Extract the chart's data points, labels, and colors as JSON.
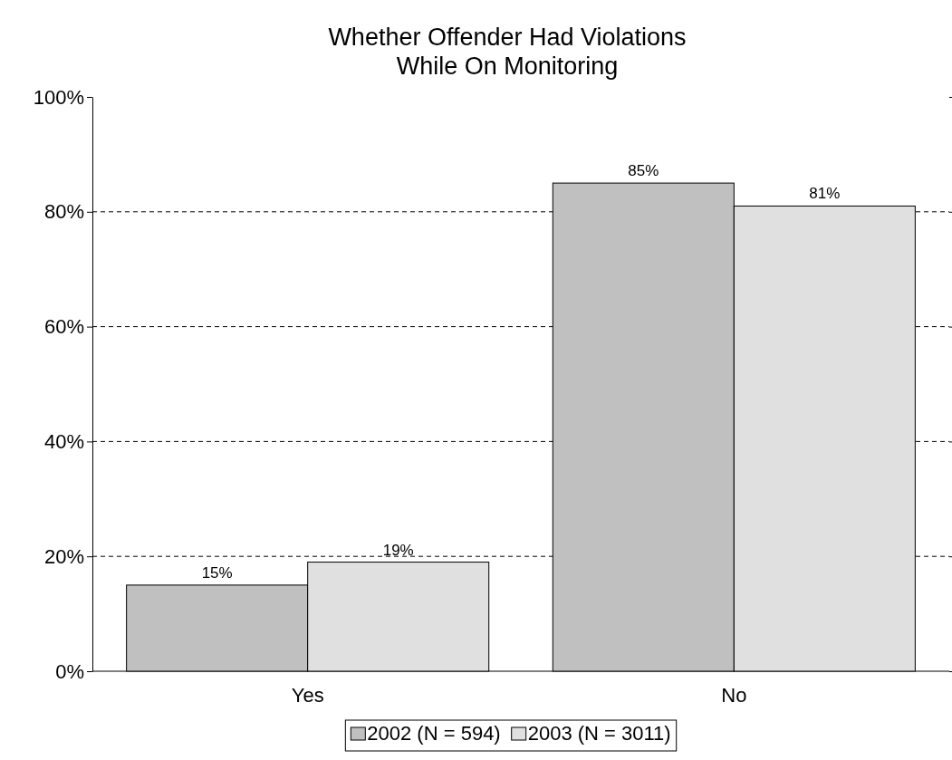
{
  "chart_data": {
    "type": "bar",
    "title": "Whether Offender Had Violations While On Monitoring",
    "categories": [
      "Yes",
      "No"
    ],
    "series": [
      {
        "name": "2002 (N = 594)",
        "color": "#c0c0c0",
        "values": [
          15,
          85
        ],
        "value_labels": [
          "15%",
          "85%"
        ]
      },
      {
        "name": "2003 (N = 3011)",
        "color": "#e0e0e0",
        "values": [
          19,
          81
        ],
        "value_labels": [
          "19%",
          "81%"
        ]
      }
    ],
    "ylim": [
      0,
      100
    ],
    "yticks": [
      {
        "value": 0,
        "label": "0%"
      },
      {
        "value": 20,
        "label": "20%"
      },
      {
        "value": 40,
        "label": "40%"
      },
      {
        "value": 60,
        "label": "60%"
      },
      {
        "value": 80,
        "label": "80%"
      },
      {
        "value": 100,
        "label": "100%"
      }
    ],
    "grid": "y",
    "legend": "bottom"
  }
}
